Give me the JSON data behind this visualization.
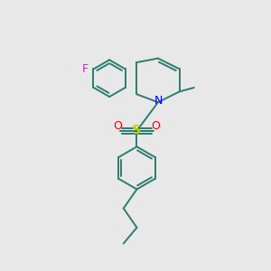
{
  "background_color": "#e8e8e8",
  "bond_color": "#2d7d6e",
  "N_color": "#0000ff",
  "S_color": "#cccc00",
  "O_color": "#ff0000",
  "F_color": "#ff00ff",
  "figsize": [
    3.0,
    3.0
  ],
  "dpi": 100,
  "xlim": [
    0,
    10
  ],
  "ylim": [
    0,
    10
  ]
}
